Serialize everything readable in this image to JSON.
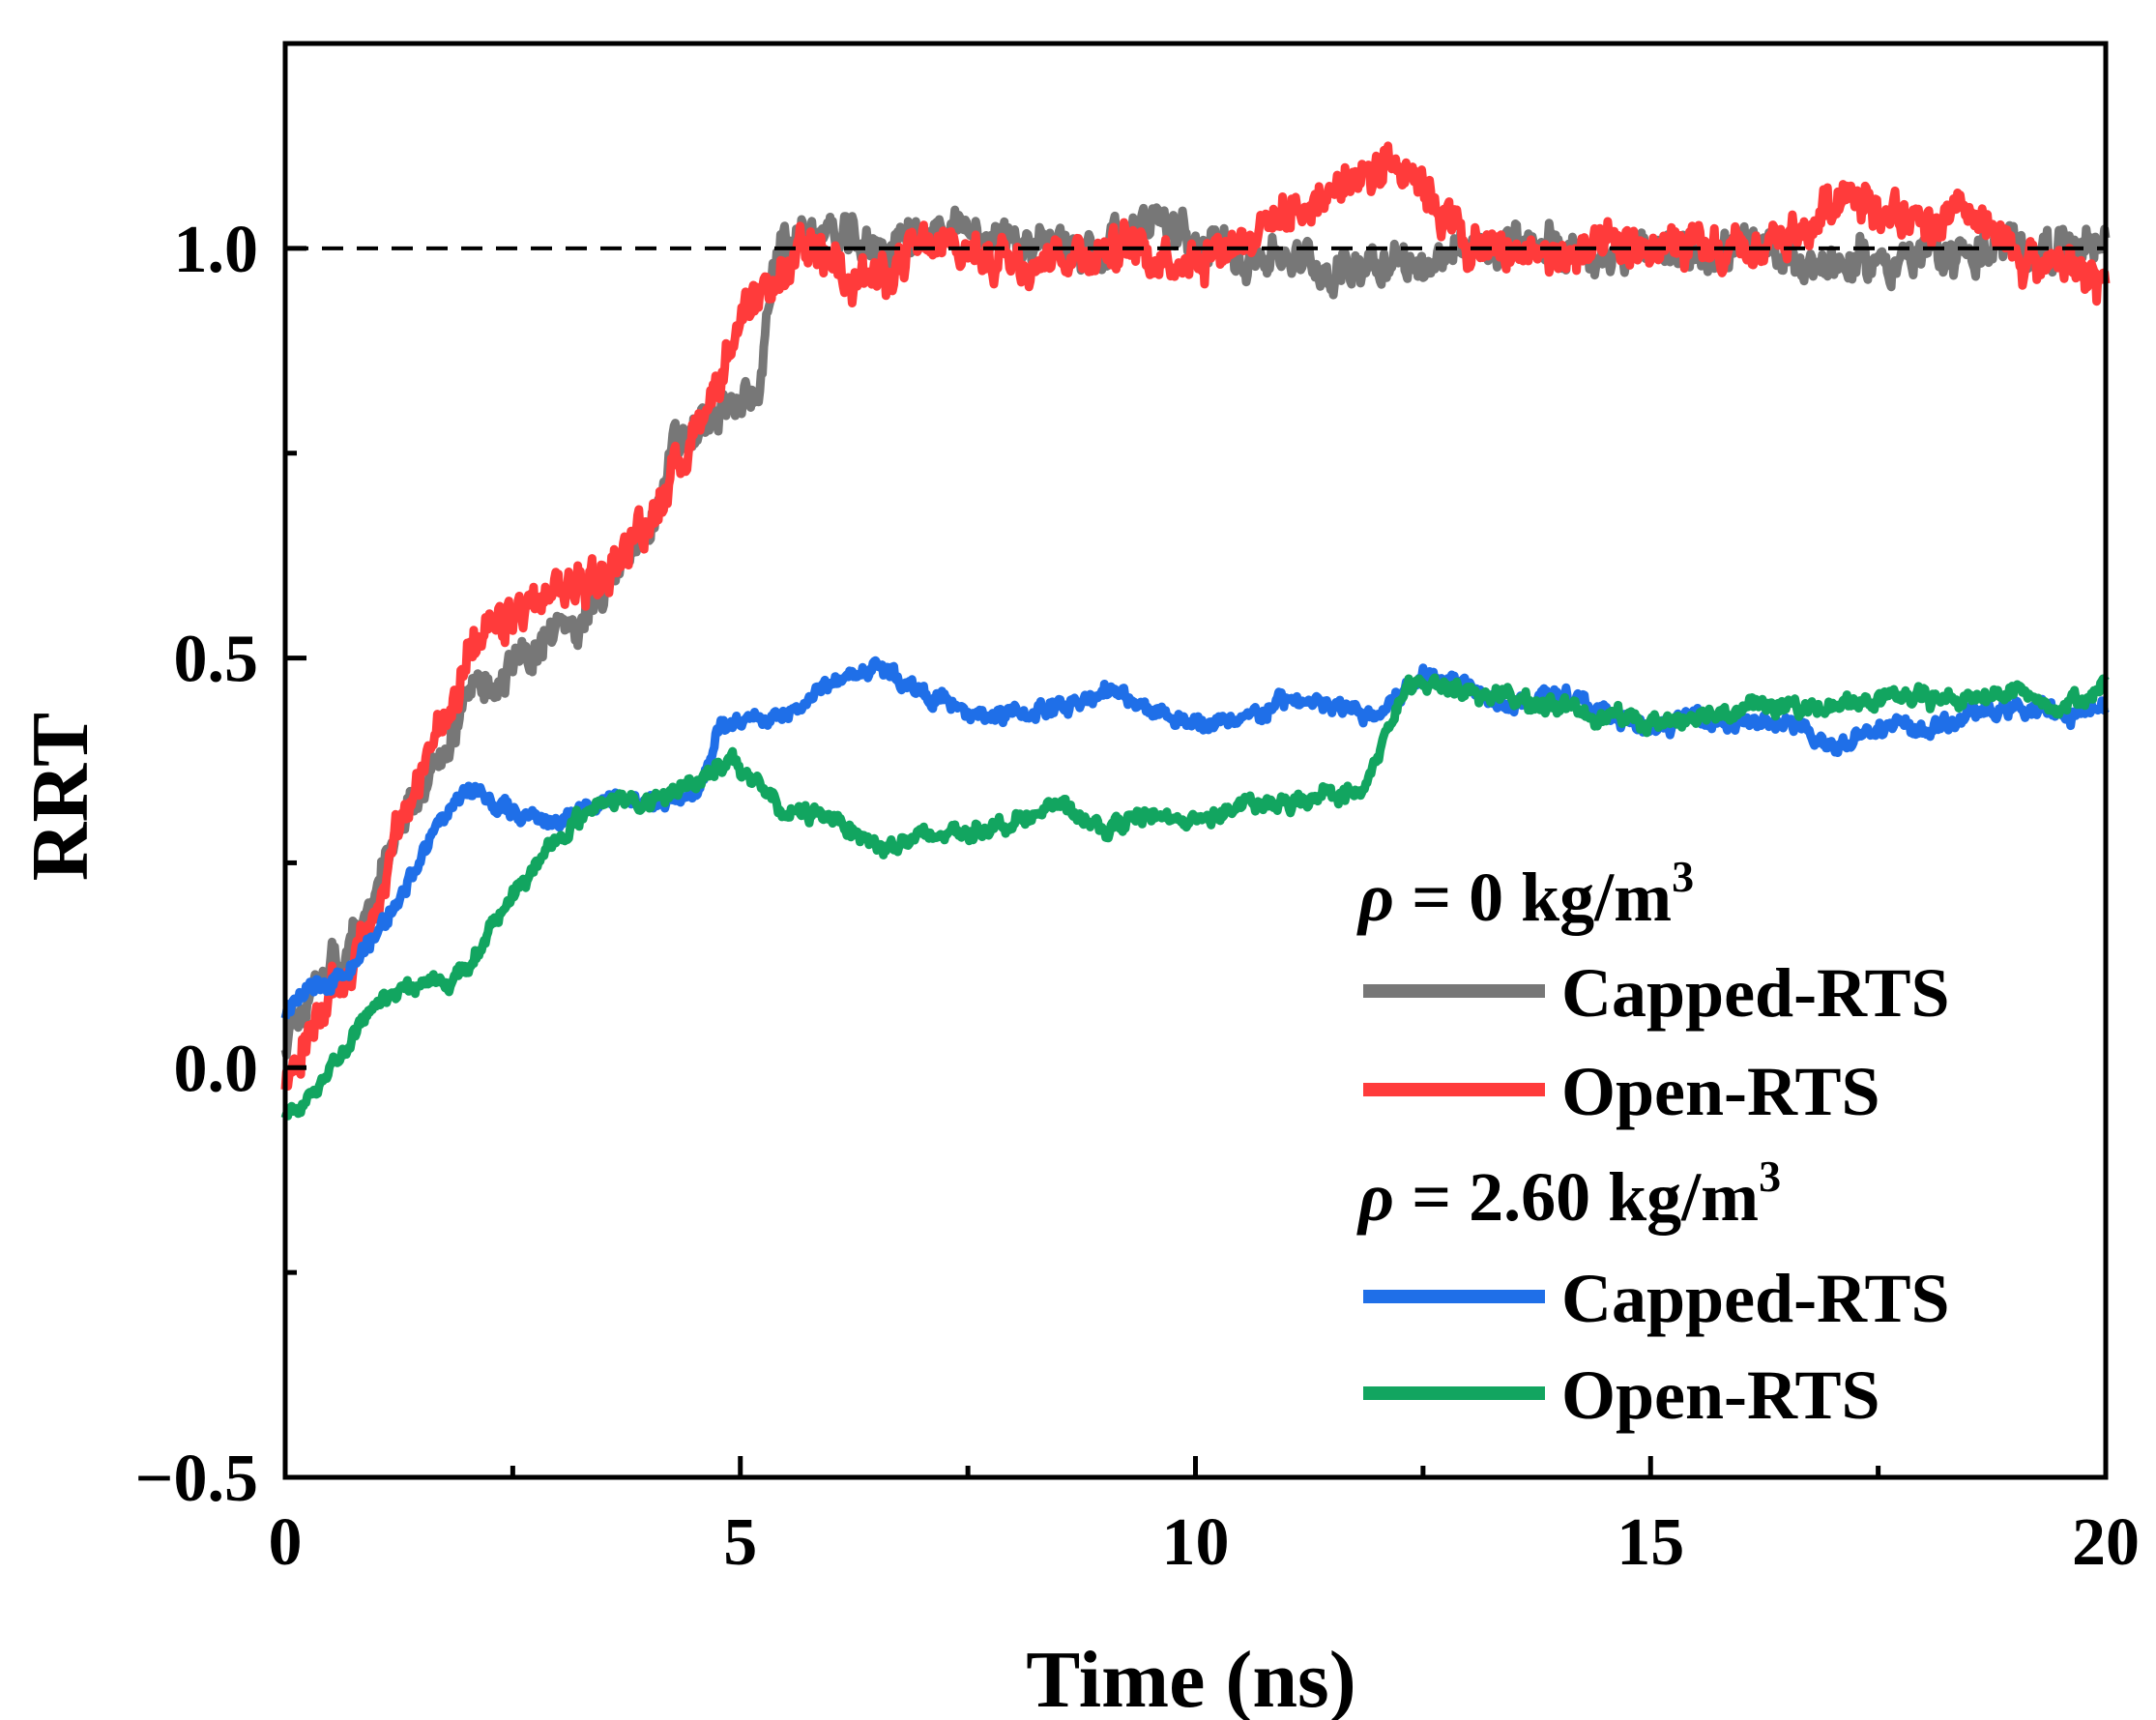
{
  "chart_data": {
    "type": "line",
    "xlabel": "Time (ns)",
    "ylabel": "RRT",
    "xlim": [
      0,
      20
    ],
    "ylim": [
      -0.5,
      1.25
    ],
    "x_ticks": [
      0,
      5,
      10,
      15,
      20
    ],
    "x_tick_labels": [
      "0",
      "5",
      "10",
      "15",
      "20"
    ],
    "x_minor_ticks": [
      2.5,
      7.5,
      12.5,
      17.5
    ],
    "y_ticks": [
      -0.5,
      0.0,
      0.5,
      1.0
    ],
    "y_tick_labels": [
      "−0.5",
      "0.0",
      "0.5",
      "1.0"
    ],
    "y_minor_ticks": [
      -0.25,
      0.25,
      0.75
    ],
    "reference_line": {
      "y": 1.0,
      "style": "dashed",
      "color": "#000000"
    },
    "legend": {
      "placement": "bottom-right",
      "groups": [
        {
          "prefix": "ρ",
          "label": " = 0 kg/m",
          "sup": "3",
          "entries": [
            "Capped-RTS",
            "Open-RTS"
          ]
        },
        {
          "prefix": "ρ",
          "label": " = 2.60 kg/m",
          "sup": "3",
          "entries": [
            "Capped-RTS",
            "Open-RTS"
          ]
        }
      ]
    },
    "series": [
      {
        "name": "Capped-RTS (ρ = 0 kg/m³)",
        "color": "#777777",
        "noise": 0.028,
        "x": [
          0,
          0.3,
          0.7,
          1.0,
          1.3,
          1.7,
          2.0,
          2.5,
          3.0,
          3.5,
          4.0,
          4.3,
          4.7,
          5.0,
          5.2,
          5.4,
          5.8,
          6.5,
          7.0,
          8.0,
          9.0,
          9.5,
          10.0,
          11.0,
          11.5,
          12.0,
          12.5,
          13.0,
          14.0,
          15.0,
          16.0,
          17.0,
          18.0,
          19.0,
          20.0
        ],
        "y": [
          0.03,
          0.1,
          0.15,
          0.22,
          0.3,
          0.38,
          0.45,
          0.49,
          0.53,
          0.58,
          0.66,
          0.76,
          0.79,
          0.81,
          0.83,
          1.0,
          1.02,
          1.0,
          1.02,
          1.01,
          1.0,
          1.04,
          1.0,
          0.99,
          0.97,
          0.99,
          0.98,
          1.0,
          1.0,
          0.99,
          1.0,
          0.98,
          0.99,
          1.0,
          1.01
        ]
      },
      {
        "name": "Open-RTS (ρ = 0 kg/m³)",
        "color": "#ff3b3b",
        "noise": 0.03,
        "x": [
          0,
          0.3,
          0.7,
          1.0,
          1.3,
          1.7,
          2.0,
          2.5,
          3.0,
          3.5,
          4.0,
          4.3,
          4.7,
          5.0,
          5.4,
          5.8,
          6.5,
          7.0,
          8.0,
          9.0,
          10.0,
          11.0,
          11.5,
          12.0,
          12.3,
          12.7,
          13.0,
          14.0,
          15.0,
          16.0,
          16.7,
          17.2,
          17.5,
          18.0,
          18.5,
          19.0,
          19.5,
          20.0
        ],
        "y": [
          -0.02,
          0.05,
          0.12,
          0.2,
          0.3,
          0.42,
          0.5,
          0.55,
          0.58,
          0.6,
          0.67,
          0.73,
          0.83,
          0.9,
          0.96,
          1.0,
          0.96,
          1.0,
          0.99,
          1.0,
          0.99,
          1.04,
          1.07,
          1.1,
          1.11,
          1.05,
          1.0,
          0.99,
          1.0,
          0.99,
          1.02,
          1.08,
          1.05,
          1.02,
          1.04,
          0.99,
          0.98,
          0.96
        ]
      },
      {
        "name": "Capped-RTS (ρ = 2.60 kg/m³)",
        "color": "#1f6fe8",
        "noise": 0.012,
        "x": [
          0,
          0.3,
          0.7,
          1.0,
          1.3,
          1.7,
          2.0,
          2.2,
          2.5,
          3.0,
          3.5,
          4.0,
          4.5,
          4.8,
          5.0,
          5.5,
          6.0,
          6.5,
          7.0,
          7.5,
          8.0,
          8.5,
          9.0,
          9.5,
          10.0,
          10.5,
          11.0,
          11.5,
          12.0,
          12.5,
          13.0,
          13.5,
          14.0,
          14.5,
          15.0,
          15.5,
          16.0,
          16.5,
          17.0,
          17.5,
          18.0,
          18.5,
          19.0,
          19.5,
          20.0
        ],
        "y": [
          0.06,
          0.1,
          0.12,
          0.16,
          0.22,
          0.3,
          0.34,
          0.33,
          0.31,
          0.3,
          0.33,
          0.32,
          0.33,
          0.42,
          0.42,
          0.43,
          0.47,
          0.49,
          0.46,
          0.43,
          0.43,
          0.44,
          0.46,
          0.44,
          0.42,
          0.42,
          0.45,
          0.44,
          0.43,
          0.48,
          0.47,
          0.44,
          0.46,
          0.43,
          0.41,
          0.43,
          0.42,
          0.42,
          0.39,
          0.42,
          0.41,
          0.43,
          0.44,
          0.43,
          0.44
        ]
      },
      {
        "name": "Open-RTS (ρ = 2.60 kg/m³)",
        "color": "#12a560",
        "noise": 0.012,
        "x": [
          0,
          0.3,
          0.7,
          1.0,
          1.3,
          1.7,
          2.0,
          2.3,
          2.7,
          3.0,
          3.5,
          4.0,
          4.5,
          4.9,
          5.2,
          5.5,
          6.0,
          6.5,
          7.0,
          7.5,
          8.0,
          8.5,
          9.0,
          9.5,
          10.0,
          10.5,
          11.0,
          11.5,
          11.8,
          12.0,
          12.3,
          12.6,
          13.0,
          13.5,
          14.0,
          14.5,
          15.0,
          15.5,
          16.0,
          16.5,
          17.0,
          17.5,
          18.0,
          18.5,
          19.0,
          19.5,
          20.0
        ],
        "y": [
          -0.06,
          -0.03,
          0.03,
          0.08,
          0.1,
          0.1,
          0.12,
          0.18,
          0.24,
          0.28,
          0.33,
          0.32,
          0.35,
          0.38,
          0.34,
          0.31,
          0.31,
          0.27,
          0.28,
          0.29,
          0.3,
          0.32,
          0.29,
          0.31,
          0.3,
          0.32,
          0.32,
          0.34,
          0.33,
          0.38,
          0.46,
          0.47,
          0.46,
          0.45,
          0.44,
          0.43,
          0.42,
          0.43,
          0.44,
          0.44,
          0.44,
          0.45,
          0.45,
          0.45,
          0.46,
          0.44,
          0.47
        ]
      }
    ]
  }
}
